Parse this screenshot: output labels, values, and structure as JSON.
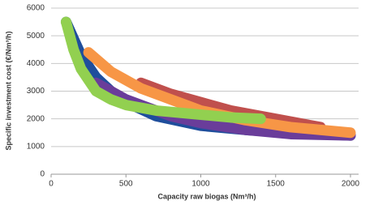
{
  "chart_data": {
    "type": "line",
    "x_label": "Capacity raw biogas (Nm³/h)",
    "y_label": "Specific investment cost (€/Nm³/h)",
    "xlim": [
      0,
      2000
    ],
    "xticks": [
      0,
      500,
      1000,
      1500,
      2000
    ],
    "ylim": [
      0,
      6000
    ],
    "yticks": [
      0,
      1000,
      2000,
      3000,
      4000,
      5000,
      6000
    ],
    "grid": true,
    "series": [
      {
        "color": "#1f4e9c",
        "x": [
          100,
          200,
          300,
          400,
          500,
          700,
          1000,
          1300,
          1600,
          2000
        ],
        "values": [
          5500,
          4300,
          3500,
          3000,
          2600,
          2100,
          1750,
          1600,
          1500,
          1400
        ]
      },
      {
        "color": "#6a3d9a",
        "x": [
          300,
          500,
          800,
          1000,
          1300,
          1600,
          2000
        ],
        "values": [
          3300,
          2700,
          2100,
          1850,
          1600,
          1450,
          1400
        ]
      },
      {
        "color": "#c0504d",
        "x": [
          600,
          800,
          1000,
          1200,
          1500,
          1800
        ],
        "values": [
          3300,
          2900,
          2600,
          2300,
          2000,
          1700
        ]
      },
      {
        "color": "#f79646",
        "x": [
          250,
          400,
          600,
          800,
          1000,
          1300,
          1600,
          2000
        ],
        "values": [
          4400,
          3700,
          3100,
          2700,
          2300,
          1950,
          1700,
          1500
        ]
      },
      {
        "color": "#92d050",
        "x": [
          100,
          150,
          200,
          300,
          400,
          500,
          700,
          1000,
          1200,
          1400
        ],
        "values": [
          5500,
          4500,
          3800,
          3000,
          2700,
          2500,
          2300,
          2150,
          2050,
          2000
        ]
      }
    ]
  }
}
